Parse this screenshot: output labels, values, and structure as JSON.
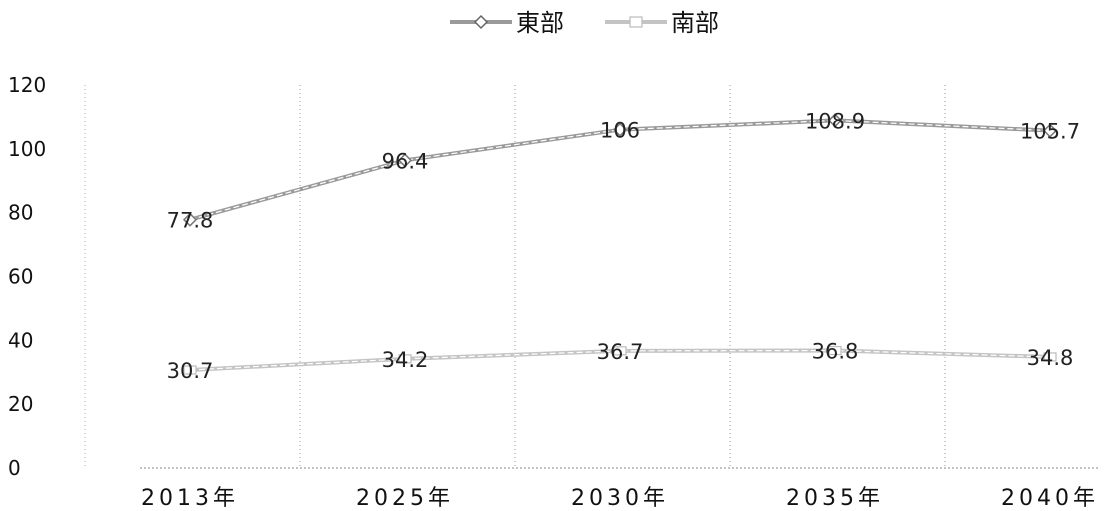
{
  "legend": {
    "items": [
      {
        "label": "東部",
        "marker": "diamond"
      },
      {
        "label": "南部",
        "marker": "square"
      }
    ]
  },
  "chart_data": {
    "type": "line",
    "categories": [
      "2013年",
      "2025年",
      "2030年",
      "2035年",
      "2040年"
    ],
    "series": [
      {
        "name": "東部",
        "values": [
          77.8,
          96.4,
          106,
          108.9,
          105.7
        ],
        "color": "#9a9a9a"
      },
      {
        "name": "南部",
        "values": [
          30.7,
          34.2,
          36.7,
          36.8,
          34.8
        ],
        "color": "#c4c4c4"
      }
    ],
    "y_ticks": [
      "0",
      "20",
      "40",
      "60",
      "80",
      "100",
      "120"
    ],
    "ylim": [
      0,
      120
    ],
    "grid": "vertical-dotted",
    "legend_position": "top-center",
    "data_labels": true
  }
}
